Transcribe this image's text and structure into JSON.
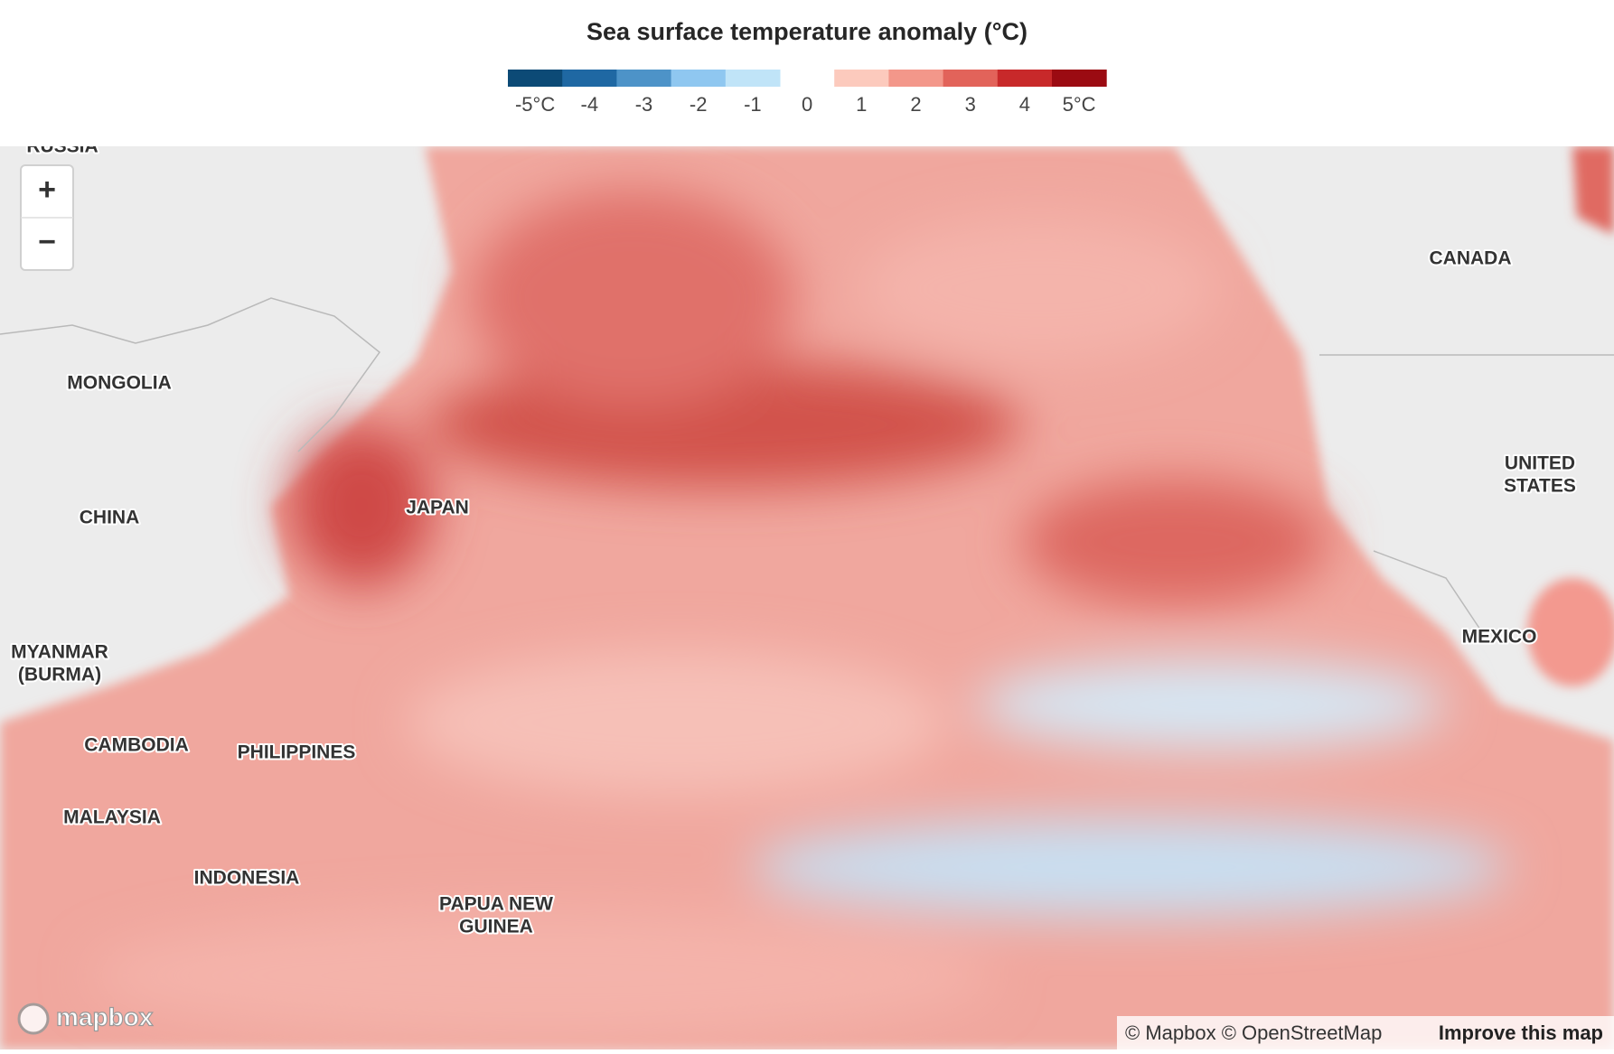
{
  "title": "Sea surface temperature anomaly (°C)",
  "legend": {
    "labels": [
      "-5°C",
      "-4",
      "-3",
      "-2",
      "-1",
      "0",
      "1",
      "2",
      "3",
      "4",
      "5°C"
    ],
    "colors": [
      "#0c4a76",
      "#1f68a3",
      "#4d93c8",
      "#8fc7f0",
      "#c0e4f8",
      "#fccabd",
      "#f3978a",
      "#e2635a",
      "#c8292a",
      "#9b0b12"
    ]
  },
  "map_labels": [
    [
      "RUSSIA"
    ],
    [
      "MONGOLIA"
    ],
    [
      "CHINA"
    ],
    [
      "JAPAN"
    ],
    [
      "MYANMAR",
      "(BURMA)"
    ],
    [
      "CAMBODIA"
    ],
    [
      "PHILIPPINES"
    ],
    [
      "MALAYSIA"
    ],
    [
      "INDONESIA"
    ],
    [
      "PAPUA NEW",
      "GUINEA"
    ],
    [
      "CANADA"
    ],
    [
      "UNITED",
      "STATES"
    ],
    [
      "MEXICO"
    ]
  ],
  "controls": {
    "zoom_in": "+",
    "zoom_out": "−"
  },
  "attribution": {
    "text": "© Mapbox © OpenStreetMap",
    "link": "Improve this map"
  },
  "logo": "mapbox"
}
